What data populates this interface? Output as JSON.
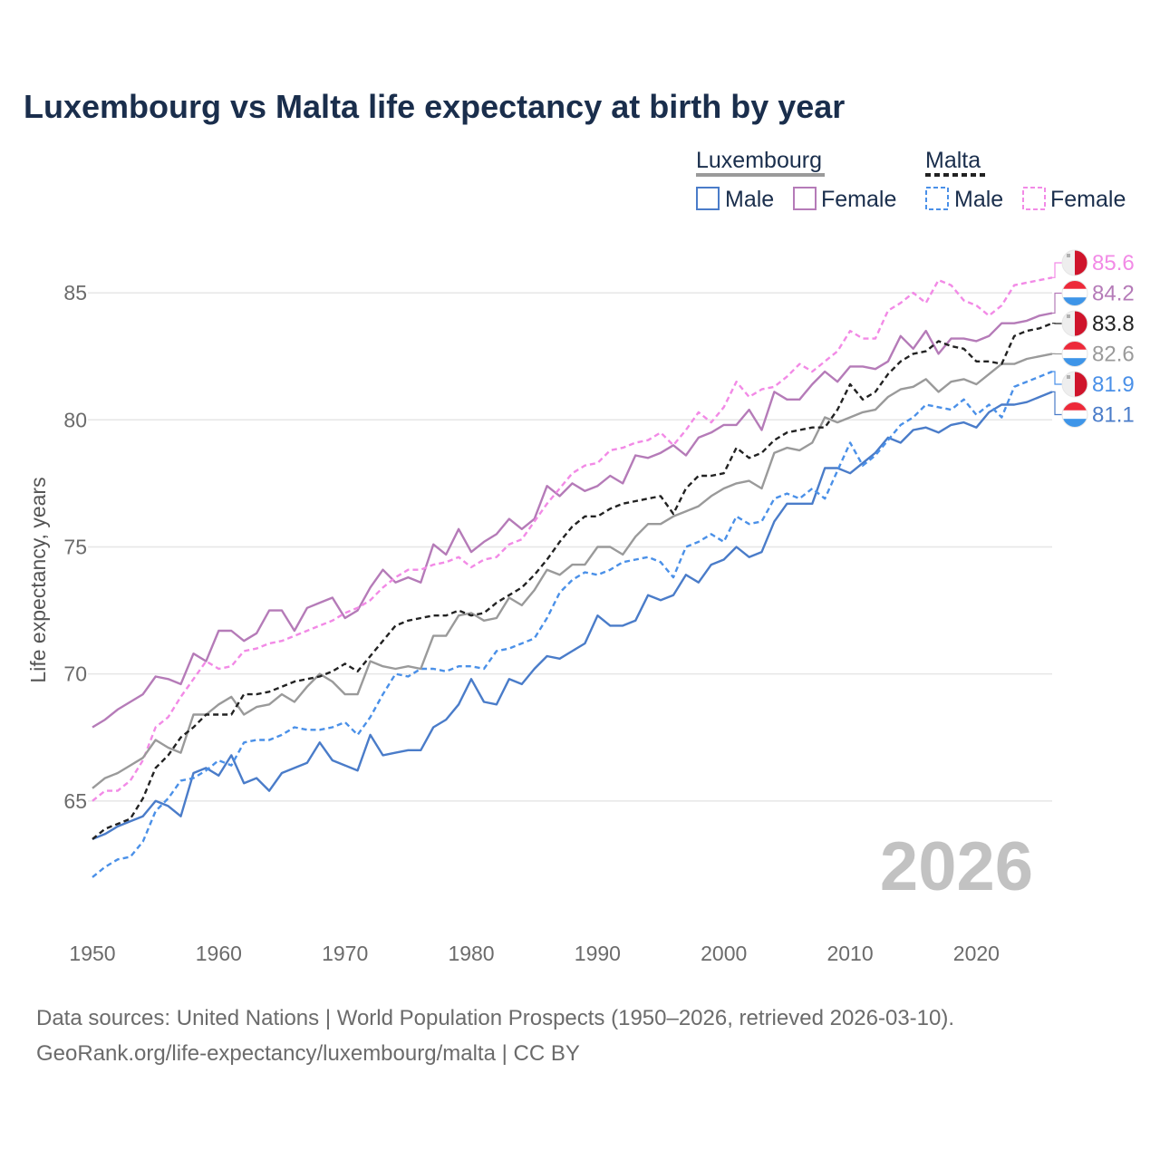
{
  "title": "Luxembourg vs Malta life expectancy at birth by year",
  "legend": {
    "groups": [
      {
        "name": "Luxembourg",
        "swatch_color": "#9a9a9a",
        "dashed": false
      },
      {
        "name": "Malta",
        "swatch_color": "#222222",
        "dashed": true
      }
    ],
    "items": [
      {
        "label": "Male",
        "color": "#4a7cc9",
        "dashed": false
      },
      {
        "label": "Female",
        "color": "#b57bb8",
        "dashed": false
      },
      {
        "label": "Male",
        "color": "#4a90e8",
        "dashed": true
      },
      {
        "label": "Female",
        "color": "#f28ae6",
        "dashed": true
      }
    ]
  },
  "year_watermark": "2026",
  "source_line1": "Data sources: United Nations | World Population Prospects (1950–2026, retrieved 2026-03-10).",
  "source_line2": "GeoRank.org/life-expectancy/luxembourg/malta | CC BY",
  "chart_data": {
    "type": "line",
    "ylabel": "Life expectancy, years",
    "xlim": [
      1950,
      2026
    ],
    "ylim": [
      60.5,
      87.5
    ],
    "x_ticks": [
      1950,
      1960,
      1970,
      1980,
      1990,
      2000,
      2010,
      2020
    ],
    "y_ticks": [
      65,
      70,
      75,
      80,
      85
    ],
    "series": [
      {
        "name": "Luxembourg Male",
        "country": "Luxembourg",
        "flag": "luxembourg",
        "color": "#4a7cc9",
        "dashed": false,
        "end_label": "81.1",
        "values": [
          63.5,
          63.7,
          64.0,
          64.2,
          64.4,
          65.0,
          64.8,
          64.4,
          66.1,
          66.3,
          66.0,
          66.8,
          65.7,
          65.9,
          65.4,
          66.1,
          66.3,
          66.5,
          67.3,
          66.6,
          66.4,
          66.2,
          67.6,
          66.8,
          66.9,
          67.0,
          67.0,
          67.9,
          68.2,
          68.8,
          69.8,
          68.9,
          68.8,
          69.8,
          69.6,
          70.2,
          70.7,
          70.6,
          70.9,
          71.2,
          72.3,
          71.9,
          71.9,
          72.1,
          73.1,
          72.9,
          73.1,
          73.9,
          73.6,
          74.3,
          74.5,
          75.0,
          74.6,
          74.8,
          76.0,
          76.7,
          76.7,
          76.7,
          78.1,
          78.1,
          77.9,
          78.3,
          78.7,
          79.3,
          79.1,
          79.6,
          79.7,
          79.5,
          79.8,
          79.9,
          79.7,
          80.3,
          80.6,
          80.6,
          80.7,
          80.9,
          81.1
        ]
      },
      {
        "name": "Luxembourg Female",
        "country": "Luxembourg",
        "flag": "luxembourg",
        "color": "#b57bb8",
        "dashed": false,
        "end_label": "84.2",
        "values": [
          67.9,
          68.2,
          68.6,
          68.9,
          69.2,
          69.9,
          69.8,
          69.6,
          70.8,
          70.5,
          71.7,
          71.7,
          71.3,
          71.6,
          72.5,
          72.5,
          71.7,
          72.6,
          72.8,
          73.0,
          72.2,
          72.5,
          73.4,
          74.1,
          73.6,
          73.8,
          73.6,
          75.1,
          74.7,
          75.7,
          74.8,
          75.2,
          75.5,
          76.1,
          75.7,
          76.1,
          77.4,
          77.0,
          77.5,
          77.2,
          77.4,
          77.8,
          77.5,
          78.6,
          78.5,
          78.7,
          79.0,
          78.6,
          79.3,
          79.5,
          79.8,
          79.8,
          80.4,
          79.6,
          81.1,
          80.8,
          80.8,
          81.4,
          81.9,
          81.5,
          82.1,
          82.1,
          82.0,
          82.3,
          83.3,
          82.8,
          83.5,
          82.6,
          83.2,
          83.2,
          83.1,
          83.3,
          83.8,
          83.8,
          83.9,
          84.1,
          84.2
        ]
      },
      {
        "name": "Malta Male",
        "country": "Malta",
        "flag": "malta",
        "color": "#4a90e8",
        "dashed": true,
        "end_label": "81.9",
        "values": [
          62.0,
          62.4,
          62.7,
          62.8,
          63.4,
          64.6,
          65.1,
          65.8,
          65.9,
          66.2,
          66.6,
          66.4,
          67.3,
          67.4,
          67.4,
          67.6,
          67.9,
          67.8,
          67.8,
          67.9,
          68.1,
          67.6,
          68.3,
          69.2,
          70.0,
          69.9,
          70.2,
          70.2,
          70.1,
          70.3,
          70.3,
          70.2,
          70.9,
          71.0,
          71.2,
          71.4,
          72.2,
          73.2,
          73.7,
          74.0,
          73.9,
          74.1,
          74.4,
          74.5,
          74.6,
          74.4,
          73.8,
          75.0,
          75.2,
          75.5,
          75.2,
          76.2,
          75.9,
          76.0,
          76.9,
          77.1,
          76.9,
          77.3,
          76.9,
          78.0,
          79.1,
          78.2,
          78.6,
          79.2,
          79.8,
          80.1,
          80.6,
          80.5,
          80.4,
          80.8,
          80.2,
          80.6,
          80.1,
          81.3,
          81.5,
          81.7,
          81.9
        ]
      },
      {
        "name": "Malta Female",
        "country": "Malta",
        "flag": "malta",
        "color": "#f28ae6",
        "dashed": true,
        "end_label": "85.6",
        "values": [
          65.0,
          65.4,
          65.4,
          65.8,
          66.6,
          67.9,
          68.3,
          69.1,
          69.8,
          70.5,
          70.2,
          70.3,
          70.9,
          71.0,
          71.2,
          71.3,
          71.5,
          71.7,
          71.9,
          72.1,
          72.4,
          72.6,
          72.9,
          73.4,
          73.8,
          74.1,
          74.1,
          74.3,
          74.4,
          74.6,
          74.2,
          74.5,
          74.6,
          75.1,
          75.3,
          76.0,
          76.7,
          77.3,
          77.9,
          78.2,
          78.3,
          78.8,
          78.9,
          79.1,
          79.2,
          79.5,
          79.0,
          79.6,
          80.3,
          79.9,
          80.5,
          81.5,
          80.9,
          81.2,
          81.3,
          81.7,
          82.2,
          81.9,
          82.3,
          82.7,
          83.5,
          83.2,
          83.2,
          84.3,
          84.6,
          85.0,
          84.6,
          85.5,
          85.3,
          84.7,
          84.5,
          84.1,
          84.5,
          85.3,
          85.4,
          85.5,
          85.6
        ]
      },
      {
        "name": "Luxembourg",
        "country": "Luxembourg",
        "flag": "luxembourg",
        "color": "#9a9a9a",
        "dashed": false,
        "end_label": "82.6",
        "values": [
          65.5,
          65.9,
          66.1,
          66.4,
          66.7,
          67.4,
          67.1,
          66.9,
          68.4,
          68.4,
          68.8,
          69.1,
          68.4,
          68.7,
          68.8,
          69.2,
          68.9,
          69.5,
          70.0,
          69.7,
          69.2,
          69.2,
          70.5,
          70.3,
          70.2,
          70.3,
          70.2,
          71.5,
          71.5,
          72.3,
          72.4,
          72.1,
          72.2,
          73.0,
          72.7,
          73.3,
          74.1,
          73.9,
          74.3,
          74.3,
          75.0,
          75.0,
          74.7,
          75.4,
          75.9,
          75.9,
          76.2,
          76.4,
          76.6,
          77.0,
          77.3,
          77.5,
          77.6,
          77.3,
          78.7,
          78.9,
          78.8,
          79.1,
          80.1,
          79.9,
          80.1,
          80.3,
          80.4,
          80.9,
          81.2,
          81.3,
          81.6,
          81.1,
          81.5,
          81.6,
          81.4,
          81.8,
          82.2,
          82.2,
          82.4,
          82.5,
          82.6
        ]
      },
      {
        "name": "Malta",
        "country": "Malta",
        "flag": "malta",
        "color": "#222222",
        "dashed": true,
        "end_label": "83.8",
        "values": [
          63.5,
          63.9,
          64.1,
          64.3,
          65.1,
          66.3,
          66.8,
          67.5,
          67.9,
          68.4,
          68.4,
          68.4,
          69.2,
          69.2,
          69.3,
          69.5,
          69.7,
          69.8,
          69.9,
          70.1,
          70.4,
          70.1,
          70.7,
          71.3,
          71.9,
          72.1,
          72.2,
          72.3,
          72.3,
          72.5,
          72.3,
          72.4,
          72.8,
          73.1,
          73.4,
          73.9,
          74.5,
          75.2,
          75.8,
          76.2,
          76.2,
          76.5,
          76.7,
          76.8,
          76.9,
          77.0,
          76.3,
          77.3,
          77.8,
          77.8,
          77.9,
          78.9,
          78.5,
          78.7,
          79.2,
          79.5,
          79.6,
          79.7,
          79.7,
          80.4,
          81.4,
          80.8,
          81.1,
          81.8,
          82.3,
          82.6,
          82.7,
          83.1,
          82.9,
          82.8,
          82.3,
          82.3,
          82.2,
          83.3,
          83.5,
          83.6,
          83.8
        ]
      }
    ]
  }
}
